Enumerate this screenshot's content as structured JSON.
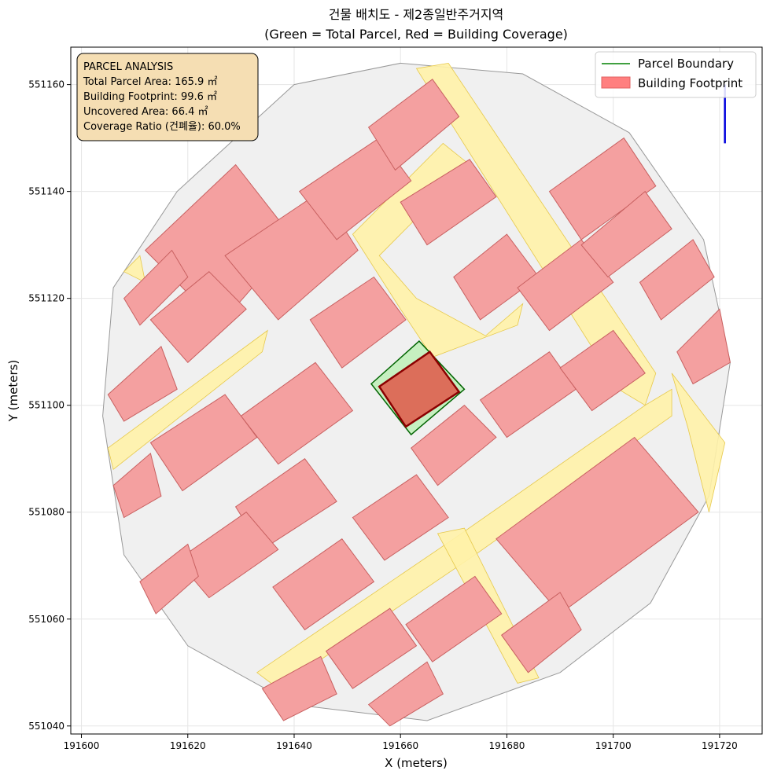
{
  "chart_data": {
    "type": "map",
    "title_line1": "건물 배치도 - 제2종일반주거지역",
    "title_line2": "(Green = Total Parcel, Red = Building Coverage)",
    "xlabel": "X (meters)",
    "ylabel": "Y (meters)",
    "xlim": [
      191598,
      191728
    ],
    "ylim": [
      551038.5,
      551167
    ],
    "x_ticks": [
      191600,
      191620,
      191640,
      191660,
      191680,
      191700,
      191720
    ],
    "y_ticks": [
      551040,
      551060,
      551080,
      551100,
      551120,
      551140,
      551160
    ],
    "grid": true,
    "legend_position": "top-right",
    "legend": [
      {
        "label": "Parcel Boundary",
        "color": "#008000",
        "kind": "line"
      },
      {
        "label": "Building Footprint",
        "color": "#ff7f7f",
        "kind": "patch"
      }
    ],
    "info_box": {
      "lines": [
        "PARCEL ANALYSIS",
        "Total Parcel Area: 165.9 ㎡",
        "Building Footprint: 99.6 ㎡",
        "Uncovered Area: 66.4 ㎡",
        "Coverage Ratio (건폐율): 60.0%"
      ]
    },
    "subject_parcel": [
      [
        191654.5,
        551104
      ],
      [
        191663.5,
        551112
      ],
      [
        191672,
        551103
      ],
      [
        191662,
        551094.5
      ]
    ],
    "subject_building": [
      [
        191656,
        551103.5
      ],
      [
        191665.5,
        551110
      ],
      [
        191671,
        551102.5
      ],
      [
        191661,
        551096
      ]
    ],
    "study_area": [
      [
        191618,
        551140
      ],
      [
        191640,
        551160
      ],
      [
        191660,
        551164
      ],
      [
        191683,
        551162
      ],
      [
        191703,
        551151
      ],
      [
        191717,
        551131
      ],
      [
        191722,
        551108
      ],
      [
        191718,
        551083
      ],
      [
        191707,
        551063
      ],
      [
        191690,
        551050
      ],
      [
        191665,
        551041
      ],
      [
        191640,
        551044
      ],
      [
        191620,
        551055
      ],
      [
        191608,
        551072
      ],
      [
        191604,
        551098
      ],
      [
        191606,
        551122
      ]
    ],
    "roads": [
      [
        [
          191663,
          551163
        ],
        [
          191669,
          551164
        ],
        [
          191708,
          551106
        ],
        [
          191706,
          551100
        ],
        [
          191701,
          551103
        ]
      ],
      [
        [
          191651,
          551132
        ],
        [
          191668,
          551149
        ],
        [
          191673,
          551145
        ],
        [
          191656,
          551128
        ],
        [
          191663,
          551120
        ],
        [
          191676,
          551113
        ],
        [
          191683,
          551119
        ],
        [
          191682,
          551115
        ],
        [
          191666,
          551109
        ],
        [
          191660,
          551118
        ]
      ],
      [
        [
          191633,
          551050
        ],
        [
          191670,
          551075
        ],
        [
          191706,
          551100
        ],
        [
          191711,
          551103
        ],
        [
          191711,
          551098
        ],
        [
          191674,
          551072
        ],
        [
          191637,
          551047
        ]
      ],
      [
        [
          191667,
          551076
        ],
        [
          191682,
          551048
        ],
        [
          191686,
          551049
        ],
        [
          191672,
          551077
        ]
      ],
      [
        [
          191605,
          551092
        ],
        [
          191635,
          551114
        ],
        [
          191634,
          551110
        ],
        [
          191606,
          551088
        ]
      ],
      [
        [
          191711,
          551106
        ],
        [
          191721,
          551093
        ],
        [
          191718,
          551080
        ],
        [
          191714,
          551096
        ]
      ],
      [
        [
          191608,
          551125
        ],
        [
          191611,
          551128
        ],
        [
          191612,
          551123
        ]
      ]
    ],
    "buildings": [
      [
        [
          191612,
          551129
        ],
        [
          191629,
          551145
        ],
        [
          191640,
          551131
        ],
        [
          191626,
          551115
        ]
      ],
      [
        [
          191627,
          551128
        ],
        [
          191645,
          551140
        ],
        [
          191652,
          551129
        ],
        [
          191637,
          551116
        ]
      ],
      [
        [
          191613,
          551116
        ],
        [
          191624,
          551125
        ],
        [
          191631,
          551118
        ],
        [
          191620,
          551108
        ]
      ],
      [
        [
          191608,
          551120
        ],
        [
          191617,
          551129
        ],
        [
          191620,
          551124
        ],
        [
          191611,
          551115
        ]
      ],
      [
        [
          191641,
          551140
        ],
        [
          191656,
          551150
        ],
        [
          191662,
          551142
        ],
        [
          191648,
          551131
        ]
      ],
      [
        [
          191654,
          551152
        ],
        [
          191666,
          551161
        ],
        [
          191671,
          551154
        ],
        [
          191659,
          551144
        ]
      ],
      [
        [
          191660,
          551138
        ],
        [
          191673,
          551146
        ],
        [
          191678,
          551139
        ],
        [
          191665,
          551130
        ]
      ],
      [
        [
          191670,
          551124
        ],
        [
          191680,
          551132
        ],
        [
          191686,
          551124
        ],
        [
          191675,
          551116
        ]
      ],
      [
        [
          191682,
          551122
        ],
        [
          191694,
          551131
        ],
        [
          191700,
          551123
        ],
        [
          191688,
          551114
        ]
      ],
      [
        [
          191688,
          551140
        ],
        [
          191702,
          551150
        ],
        [
          191708,
          551141
        ],
        [
          191694,
          551131
        ]
      ],
      [
        [
          191694,
          551130
        ],
        [
          191706,
          551140
        ],
        [
          191711,
          551133
        ],
        [
          191699,
          551124
        ]
      ],
      [
        [
          191705,
          551123
        ],
        [
          191715,
          551131
        ],
        [
          191719,
          551124
        ],
        [
          191709,
          551116
        ]
      ],
      [
        [
          191712,
          551110
        ],
        [
          191720,
          551118
        ],
        [
          191722,
          551108
        ],
        [
          191715,
          551104
        ]
      ],
      [
        [
          191643,
          551116
        ],
        [
          191655,
          551124
        ],
        [
          191661,
          551116
        ],
        [
          191649,
          551107
        ]
      ],
      [
        [
          191630,
          551098
        ],
        [
          191644,
          551108
        ],
        [
          191651,
          551099
        ],
        [
          191637,
          551089
        ]
      ],
      [
        [
          191613,
          551093
        ],
        [
          191627,
          551102
        ],
        [
          191633,
          551094
        ],
        [
          191619,
          551084
        ]
      ],
      [
        [
          191629,
          551081
        ],
        [
          191642,
          551090
        ],
        [
          191648,
          551082
        ],
        [
          191634,
          551073
        ]
      ],
      [
        [
          191618,
          551071
        ],
        [
          191631,
          551080
        ],
        [
          191637,
          551073
        ],
        [
          191624,
          551064
        ]
      ],
      [
        [
          191636,
          551066
        ],
        [
          191649,
          551075
        ],
        [
          191655,
          551067
        ],
        [
          191642,
          551058
        ]
      ],
      [
        [
          191651,
          551079
        ],
        [
          191663,
          551087
        ],
        [
          191669,
          551079
        ],
        [
          191657,
          551071
        ]
      ],
      [
        [
          191662,
          551092
        ],
        [
          191672,
          551100
        ],
        [
          191678,
          551094
        ],
        [
          191667,
          551085
        ]
      ],
      [
        [
          191675,
          551101
        ],
        [
          191688,
          551110
        ],
        [
          191693,
          551103
        ],
        [
          191680,
          551094
        ]
      ],
      [
        [
          191690,
          551107
        ],
        [
          191700,
          551114
        ],
        [
          191706,
          551106
        ],
        [
          191696,
          551099
        ]
      ],
      [
        [
          191678,
          551075
        ],
        [
          191704,
          551094
        ],
        [
          191716,
          551080
        ],
        [
          191690,
          551061
        ]
      ],
      [
        [
          191661,
          551059
        ],
        [
          191674,
          551068
        ],
        [
          191679,
          551061
        ],
        [
          191666,
          551052
        ]
      ],
      [
        [
          191646,
          551054
        ],
        [
          191658,
          551062
        ],
        [
          191663,
          551055
        ],
        [
          191651,
          551047
        ]
      ],
      [
        [
          191679,
          551057
        ],
        [
          191690,
          551065
        ],
        [
          191694,
          551058
        ],
        [
          191684,
          551050
        ]
      ],
      [
        [
          191654,
          551044
        ],
        [
          191665,
          551052
        ],
        [
          191668,
          551046
        ],
        [
          191658,
          551040
        ]
      ],
      [
        [
          191634,
          551047
        ],
        [
          191645,
          551053
        ],
        [
          191648,
          551046
        ],
        [
          191638,
          551041
        ]
      ],
      [
        [
          191605,
          551102
        ],
        [
          191615,
          551111
        ],
        [
          191618,
          551103
        ],
        [
          191608,
          551097
        ]
      ],
      [
        [
          191611,
          551067
        ],
        [
          191620,
          551074
        ],
        [
          191622,
          551068
        ],
        [
          191614,
          551061
        ]
      ],
      [
        [
          191606,
          551085
        ],
        [
          191613,
          551091
        ],
        [
          191615,
          551083
        ],
        [
          191608,
          551079
        ]
      ]
    ],
    "orientation_marker": {
      "x": 191721,
      "y1": 551160,
      "y2": 551149,
      "color": "#0000dd"
    }
  }
}
